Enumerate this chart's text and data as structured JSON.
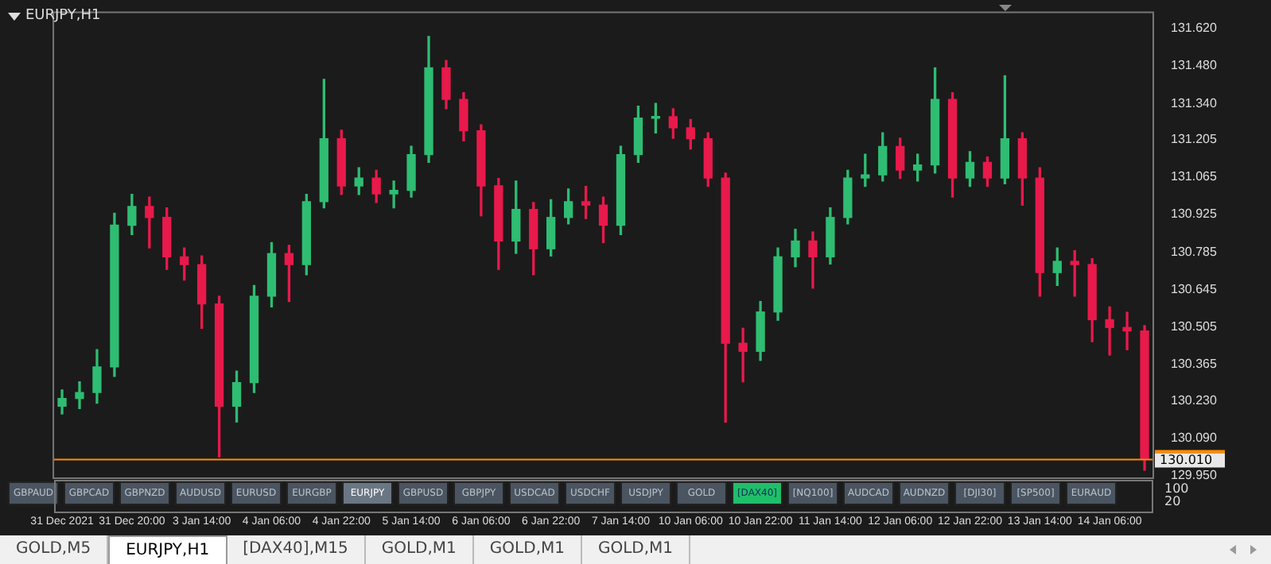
{
  "chart_data": [
    {
      "type": "candlestick",
      "title": "EURJPY,H1",
      "categories": [
        "31 Dec 2021",
        null,
        null,
        null,
        "31 Dec 20:00",
        null,
        null,
        null,
        "3 Jan 14:00",
        null,
        null,
        null,
        "4 Jan 06:00",
        null,
        null,
        null,
        "4 Jan 22:00",
        null,
        null,
        null,
        "5 Jan 14:00",
        null,
        null,
        null,
        "6 Jan 06:00",
        null,
        null,
        null,
        "6 Jan 22:00",
        null,
        null,
        null,
        "7 Jan 14:00",
        null,
        null,
        null,
        "10 Jan 06:00",
        null,
        null,
        null,
        "10 Jan 22:00",
        null,
        null,
        null,
        "11 Jan 14:00",
        null,
        null,
        null,
        "12 Jan 06:00",
        null,
        null,
        null,
        "12 Jan 22:00",
        null,
        null,
        null,
        "13 Jan 14:00",
        null,
        null,
        null,
        "14 Jan 06:00",
        null,
        null
      ],
      "ohlc": [
        [
          130.209,
          130.27,
          130.18,
          130.238
        ],
        [
          130.238,
          130.3,
          130.2,
          130.26
        ],
        [
          130.26,
          130.42,
          130.22,
          130.356
        ],
        [
          130.356,
          130.93,
          130.32,
          130.885
        ],
        [
          130.885,
          131.0,
          130.85,
          130.955
        ],
        [
          130.955,
          130.99,
          130.8,
          130.914
        ],
        [
          130.914,
          130.95,
          130.72,
          130.767
        ],
        [
          130.767,
          130.8,
          130.68,
          130.738
        ],
        [
          130.738,
          130.77,
          130.5,
          130.591
        ],
        [
          130.591,
          130.62,
          130.02,
          130.209
        ],
        [
          130.209,
          130.34,
          130.15,
          130.297
        ],
        [
          130.297,
          130.66,
          130.26,
          130.62
        ],
        [
          130.62,
          130.82,
          130.58,
          130.779
        ],
        [
          130.779,
          130.81,
          130.6,
          130.738
        ],
        [
          130.738,
          131.0,
          130.7,
          130.973
        ],
        [
          130.973,
          131.43,
          130.95,
          131.208
        ],
        [
          131.208,
          131.24,
          131.0,
          131.032
        ],
        [
          131.032,
          131.1,
          131.0,
          131.061
        ],
        [
          131.061,
          131.09,
          130.97,
          131.002
        ],
        [
          131.002,
          131.05,
          130.95,
          131.015
        ],
        [
          131.015,
          131.18,
          130.99,
          131.149
        ],
        [
          131.149,
          131.59,
          131.12,
          131.473
        ],
        [
          131.473,
          131.5,
          131.32,
          131.355
        ],
        [
          131.355,
          131.38,
          131.2,
          131.238
        ],
        [
          131.238,
          131.26,
          130.92,
          131.032
        ],
        [
          131.032,
          131.06,
          130.72,
          130.826
        ],
        [
          130.826,
          131.05,
          130.78,
          130.944
        ],
        [
          130.944,
          130.97,
          130.7,
          130.797
        ],
        [
          130.797,
          130.98,
          130.77,
          130.914
        ],
        [
          130.914,
          131.02,
          130.89,
          130.973
        ],
        [
          130.973,
          131.03,
          130.91,
          130.96
        ],
        [
          130.96,
          130.99,
          130.82,
          130.885
        ],
        [
          130.885,
          131.18,
          130.85,
          131.149
        ],
        [
          131.149,
          131.33,
          131.12,
          131.285
        ],
        [
          131.285,
          131.34,
          131.23,
          131.29
        ],
        [
          131.29,
          131.32,
          131.21,
          131.249
        ],
        [
          131.249,
          131.28,
          131.17,
          131.208
        ],
        [
          131.208,
          131.23,
          131.03,
          131.061
        ],
        [
          131.061,
          131.08,
          130.15,
          130.444
        ],
        [
          130.444,
          130.5,
          130.3,
          130.414
        ],
        [
          130.414,
          130.6,
          130.38,
          130.561
        ],
        [
          130.561,
          130.8,
          130.53,
          130.767
        ],
        [
          130.767,
          130.87,
          130.73,
          130.826
        ],
        [
          130.826,
          130.86,
          130.65,
          130.767
        ],
        [
          130.767,
          130.95,
          130.74,
          130.914
        ],
        [
          130.914,
          131.09,
          130.89,
          131.061
        ],
        [
          131.061,
          131.15,
          131.03,
          131.073
        ],
        [
          131.073,
          131.23,
          131.05,
          131.179
        ],
        [
          131.179,
          131.21,
          131.06,
          131.091
        ],
        [
          131.091,
          131.15,
          131.05,
          131.11
        ],
        [
          131.11,
          131.473,
          131.08,
          131.355
        ],
        [
          131.355,
          131.38,
          130.99,
          131.061
        ],
        [
          131.061,
          131.16,
          131.03,
          131.12
        ],
        [
          131.12,
          131.14,
          131.03,
          131.061
        ],
        [
          131.061,
          131.443,
          131.04,
          131.208
        ],
        [
          131.208,
          131.23,
          130.96,
          131.061
        ],
        [
          131.061,
          131.1,
          130.62,
          130.708
        ],
        [
          130.708,
          130.8,
          130.66,
          130.75
        ],
        [
          130.75,
          130.79,
          130.62,
          130.738
        ],
        [
          130.738,
          130.76,
          130.45,
          130.532
        ],
        [
          130.532,
          130.58,
          130.4,
          130.503
        ],
        [
          130.503,
          130.56,
          130.42,
          130.49
        ],
        [
          130.49,
          130.51,
          129.97,
          130.01
        ]
      ],
      "colors": [
        "#2ebd72",
        "#2ebd72",
        "#2ebd72",
        "#2ebd72",
        "#2ebd72",
        "#e8194b",
        "#e8194b",
        "#e8194b",
        "#e8194b",
        "#e8194b",
        "#2ebd72",
        "#2ebd72",
        "#2ebd72",
        "#e8194b",
        "#2ebd72",
        "#2ebd72",
        "#e8194b",
        "#2ebd72",
        "#e8194b",
        "#2ebd72",
        "#2ebd72",
        "#2ebd72",
        "#e8194b",
        "#e8194b",
        "#e8194b",
        "#e8194b",
        "#2ebd72",
        "#e8194b",
        "#2ebd72",
        "#2ebd72",
        "#e8194b",
        "#e8194b",
        "#2ebd72",
        "#2ebd72",
        "#2ebd72",
        "#e8194b",
        "#e8194b",
        "#e8194b",
        "#e8194b",
        "#e8194b",
        "#2ebd72",
        "#2ebd72",
        "#2ebd72",
        "#e8194b",
        "#2ebd72",
        "#2ebd72",
        "#2ebd72",
        "#2ebd72",
        "#e8194b",
        "#2ebd72",
        "#2ebd72",
        "#e8194b",
        "#2ebd72",
        "#e8194b",
        "#2ebd72",
        "#e8194b",
        "#e8194b",
        "#2ebd72",
        "#e8194b",
        "#e8194b",
        "#e8194b",
        "#e8194b",
        "#e8194b"
      ],
      "ylim": [
        129.94,
        131.68
      ],
      "yticks": [
        {
          "value": 131.62,
          "label": "131.620"
        },
        {
          "value": 131.48,
          "label": "131.480"
        },
        {
          "value": 131.34,
          "label": "131.340"
        },
        131.205,
        131.065,
        130.925,
        130.785,
        130.645,
        130.505,
        130.365,
        {
          "value": 130.23,
          "label": "130.230"
        },
        {
          "value": 130.09,
          "label": "130.090"
        },
        {
          "value": 129.95,
          "label": "129.950"
        }
      ],
      "ref_lines": [
        {
          "axis": "y",
          "value": 130.01,
          "label": "130.010",
          "color": "#ff8c00"
        }
      ],
      "grid": false,
      "legend": false
    },
    {
      "type": "other",
      "annotations": [
        "GBPAUD",
        "GBPCAD",
        "GBPNZD",
        "AUDUSD",
        "EURUSD",
        "EURGBP",
        "EURJPY",
        "GBPUSD",
        "GBPJPY",
        "USDCAD",
        "USDCHF",
        "USDJPY",
        "GOLD",
        "[DAX40]",
        "[NQ100]",
        "AUDCAD",
        "AUDNZD",
        "[DJI30]",
        "[SP500]",
        "EURAUD"
      ]
    },
    {
      "type": "other",
      "annotations": [
        "100",
        "20"
      ]
    },
    {
      "type": "other",
      "annotations": [
        "GOLD,M5",
        "EURJPY,H1",
        "[DAX40],M15",
        "GOLD,M1",
        "GOLD,M1",
        "GOLD,M1"
      ]
    }
  ]
}
